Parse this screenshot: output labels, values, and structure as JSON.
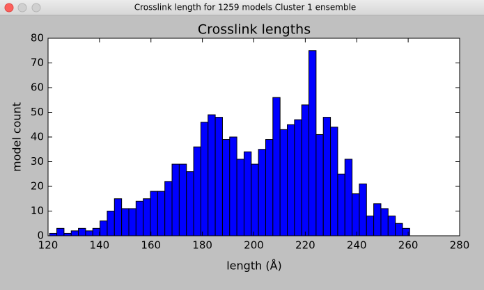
{
  "window": {
    "title": "Crosslink length for 1259 models Cluster 1 ensemble"
  },
  "chart_data": {
    "type": "histogram",
    "title": "Crosslink lengths",
    "x_label": "length (Å)",
    "y_label": "model count",
    "bins": [
      120.6,
      123.4,
      126.2,
      129.0,
      131.8,
      134.6,
      137.4,
      140.2,
      143.0,
      145.8,
      148.6,
      151.4,
      154.2,
      157.0,
      159.8,
      162.6,
      165.4,
      168.2,
      171.0,
      173.8,
      176.6,
      179.4,
      182.2,
      185.0,
      187.8,
      190.6,
      193.4,
      196.2,
      199.0,
      201.8,
      204.6,
      207.4,
      210.2,
      213.0,
      215.8,
      218.6,
      221.4,
      224.2,
      227.0,
      229.8,
      232.6,
      235.4,
      238.2,
      241.0,
      243.8,
      246.6,
      249.4,
      252.2,
      255.0,
      257.8,
      260.6
    ],
    "values": [
      1,
      3,
      1,
      2,
      3,
      2,
      3,
      6,
      10,
      15,
      11,
      11,
      14,
      15,
      18,
      18,
      22,
      29,
      29,
      26,
      36,
      46,
      49,
      48,
      39,
      40,
      31,
      34,
      29,
      35,
      39,
      56,
      43,
      45,
      47,
      53,
      75,
      41,
      48,
      44,
      25,
      31,
      17,
      21,
      8,
      13,
      11,
      8,
      5,
      3
    ],
    "color": "#0000ff",
    "edgecolor": "#000000",
    "xlim": [
      120,
      280
    ],
    "xticks": [
      120,
      140,
      160,
      180,
      200,
      220,
      240,
      260,
      280
    ],
    "ylim": [
      0,
      80
    ],
    "yticks": [
      0,
      10,
      20,
      30,
      40,
      50,
      60,
      70,
      80
    ],
    "grid": false
  }
}
